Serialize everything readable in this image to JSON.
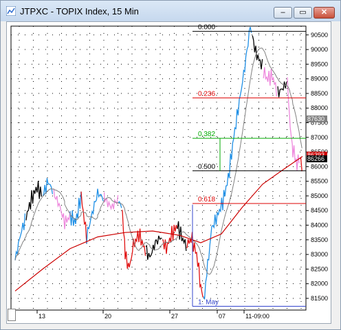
{
  "window": {
    "title": "JTPXC - TOPIX Index, 15 Min",
    "controls": {
      "minimize": "–",
      "maximize": "▭",
      "close": "✕"
    }
  },
  "chart_data": {
    "type": "line",
    "title": "JTPXC - TOPIX Index, 15 Min",
    "y_axis": {
      "ticks": [
        81500,
        82000,
        82500,
        83000,
        83500,
        84000,
        84500,
        85000,
        85500,
        86000,
        86500,
        87000,
        87500,
        88000,
        88500,
        89000,
        89500,
        90000,
        90500
      ],
      "ylim": [
        81100,
        90800
      ]
    },
    "x_axis": {
      "tick_labels": [
        "13",
        "20",
        "27",
        "07",
        "11-09:00"
      ]
    },
    "price_tags": [
      {
        "value": "87630",
        "bg": "#808080"
      },
      {
        "value": "86393",
        "bg": "#cc0000"
      },
      {
        "value": "86266",
        "bg": "#000000"
      }
    ],
    "fibonacci": [
      {
        "label": "0.000",
        "color": "#000000"
      },
      {
        "label": "0.236",
        "color": "#dd0000"
      },
      {
        "label": "0.382",
        "color": "#00aa00"
      },
      {
        "label": "0.500",
        "color": "#000000"
      },
      {
        "label": "0.618",
        "color": "#dd0000"
      },
      {
        "label": "1. May",
        "color": "#3344cc"
      }
    ],
    "fib_levels": [
      90620,
      88350,
      86970,
      85860,
      84740,
      81230
    ],
    "colors": {
      "up": "#1e8fe6",
      "down": "#e01010",
      "neutral": "#000000",
      "pullback": "#ee88dd",
      "ma_long": "#cc0000",
      "ma_short": "#808080",
      "grid": "#000000"
    }
  }
}
